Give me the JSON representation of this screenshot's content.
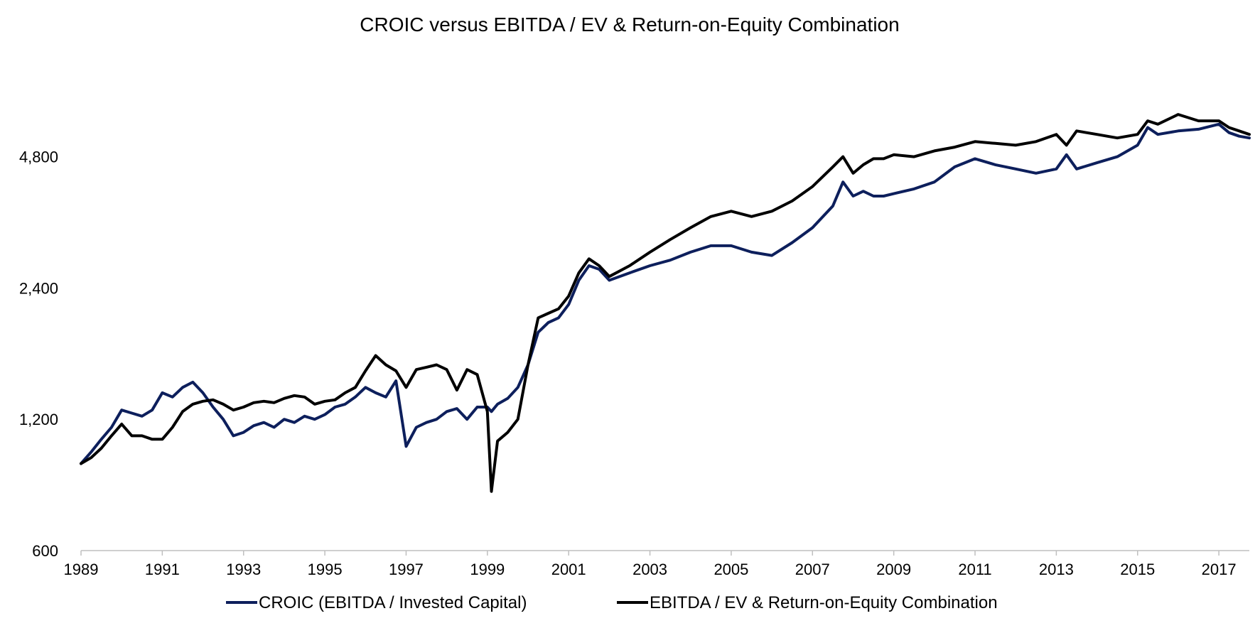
{
  "chart_data": {
    "type": "line",
    "title": "CROIC versus EBITDA / EV & Return-on-Equity Combination",
    "xlabel": "",
    "ylabel": "",
    "y_scale": "log",
    "ylim": [
      600,
      7000
    ],
    "xlim": [
      1989,
      2017.75
    ],
    "y_ticks": [
      600,
      1200,
      2400,
      4800
    ],
    "y_tick_labels": [
      "600",
      "1,200",
      "2,400",
      "4,800"
    ],
    "x_ticks": [
      1989,
      1991,
      1993,
      1995,
      1997,
      1999,
      2001,
      2003,
      2005,
      2007,
      2009,
      2011,
      2013,
      2015,
      2017
    ],
    "x_tick_labels": [
      "1989",
      "1991",
      "1993",
      "1995",
      "1997",
      "1999",
      "2001",
      "2003",
      "2005",
      "2007",
      "2009",
      "2011",
      "2013",
      "2015",
      "2017"
    ],
    "grid": false,
    "legend_position": "bottom",
    "series": [
      {
        "name": "CROIC (EBITDA / Invested Capital)",
        "color": "#0d1f5c",
        "x": [
          1989.0,
          1989.25,
          1989.5,
          1989.75,
          1990.0,
          1990.25,
          1990.5,
          1990.75,
          1991.0,
          1991.25,
          1991.5,
          1991.75,
          1992.0,
          1992.25,
          1992.5,
          1992.75,
          1993.0,
          1993.25,
          1993.5,
          1993.75,
          1994.0,
          1994.25,
          1994.5,
          1994.75,
          1995.0,
          1995.25,
          1995.5,
          1995.75,
          1996.0,
          1996.25,
          1996.5,
          1996.75,
          1997.0,
          1997.25,
          1997.5,
          1997.75,
          1998.0,
          1998.25,
          1998.5,
          1998.75,
          1999.0,
          1999.1,
          1999.25,
          1999.5,
          1999.75,
          2000.0,
          2000.25,
          2000.5,
          2000.75,
          2001.0,
          2001.25,
          2001.5,
          2001.75,
          2002.0,
          2002.5,
          2003.0,
          2003.5,
          2004.0,
          2004.5,
          2005.0,
          2005.5,
          2006.0,
          2006.5,
          2007.0,
          2007.5,
          2007.75,
          2008.0,
          2008.25,
          2008.5,
          2008.75,
          2009.0,
          2009.5,
          2010.0,
          2010.5,
          2011.0,
          2011.5,
          2012.0,
          2012.5,
          2013.0,
          2013.25,
          2013.5,
          2014.0,
          2014.5,
          2015.0,
          2015.25,
          2015.5,
          2016.0,
          2016.5,
          2017.0,
          2017.25,
          2017.5,
          2017.75
        ],
        "y": [
          950,
          1010,
          1080,
          1150,
          1260,
          1240,
          1220,
          1260,
          1380,
          1350,
          1420,
          1460,
          1380,
          1280,
          1200,
          1100,
          1120,
          1160,
          1180,
          1150,
          1200,
          1180,
          1220,
          1200,
          1230,
          1280,
          1300,
          1350,
          1420,
          1380,
          1350,
          1470,
          1040,
          1150,
          1180,
          1200,
          1250,
          1270,
          1200,
          1280,
          1280,
          1250,
          1300,
          1340,
          1420,
          1600,
          1900,
          2000,
          2050,
          2200,
          2500,
          2700,
          2650,
          2500,
          2600,
          2700,
          2780,
          2900,
          3000,
          3000,
          2900,
          2850,
          3050,
          3300,
          3700,
          4200,
          3900,
          4000,
          3900,
          3900,
          3950,
          4050,
          4200,
          4550,
          4750,
          4600,
          4500,
          4400,
          4500,
          4850,
          4500,
          4650,
          4800,
          5100,
          5600,
          5400,
          5500,
          5550,
          5700,
          5450,
          5350,
          5300
        ]
      },
      {
        "name": "EBITDA / EV & Return-on-Equity Combination",
        "color": "#000000",
        "x": [
          1989.0,
          1989.25,
          1989.5,
          1989.75,
          1990.0,
          1990.25,
          1990.5,
          1990.75,
          1991.0,
          1991.25,
          1991.5,
          1991.75,
          1992.0,
          1992.25,
          1992.5,
          1992.75,
          1993.0,
          1993.25,
          1993.5,
          1993.75,
          1994.0,
          1994.25,
          1994.5,
          1994.75,
          1995.0,
          1995.25,
          1995.5,
          1995.75,
          1996.0,
          1996.25,
          1996.5,
          1996.75,
          1997.0,
          1997.25,
          1997.5,
          1997.75,
          1998.0,
          1998.25,
          1998.5,
          1998.75,
          1999.0,
          1999.1,
          1999.25,
          1999.5,
          1999.75,
          2000.0,
          2000.25,
          2000.5,
          2000.75,
          2001.0,
          2001.25,
          2001.5,
          2001.75,
          2002.0,
          2002.5,
          2003.0,
          2003.5,
          2004.0,
          2004.5,
          2005.0,
          2005.5,
          2006.0,
          2006.5,
          2007.0,
          2007.5,
          2007.75,
          2008.0,
          2008.25,
          2008.5,
          2008.75,
          2009.0,
          2009.5,
          2010.0,
          2010.5,
          2011.0,
          2011.5,
          2012.0,
          2012.5,
          2013.0,
          2013.25,
          2013.5,
          2014.0,
          2014.5,
          2015.0,
          2015.25,
          2015.5,
          2016.0,
          2016.5,
          2017.0,
          2017.25,
          2017.5,
          2017.75
        ],
        "y": [
          950,
          980,
          1030,
          1100,
          1170,
          1100,
          1100,
          1080,
          1080,
          1150,
          1250,
          1300,
          1320,
          1330,
          1300,
          1260,
          1280,
          1310,
          1320,
          1310,
          1340,
          1360,
          1350,
          1300,
          1320,
          1330,
          1380,
          1420,
          1550,
          1680,
          1600,
          1550,
          1420,
          1560,
          1580,
          1600,
          1560,
          1400,
          1560,
          1520,
          1250,
          820,
          1070,
          1120,
          1200,
          1600,
          2050,
          2100,
          2150,
          2300,
          2600,
          2800,
          2700,
          2550,
          2700,
          2900,
          3100,
          3300,
          3500,
          3600,
          3500,
          3600,
          3800,
          4100,
          4550,
          4800,
          4400,
          4600,
          4750,
          4750,
          4850,
          4800,
          4950,
          5050,
          5200,
          5150,
          5100,
          5200,
          5400,
          5100,
          5500,
          5400,
          5300,
          5400,
          5800,
          5700,
          6000,
          5800,
          5800,
          5600,
          5500,
          5400
        ]
      }
    ]
  }
}
